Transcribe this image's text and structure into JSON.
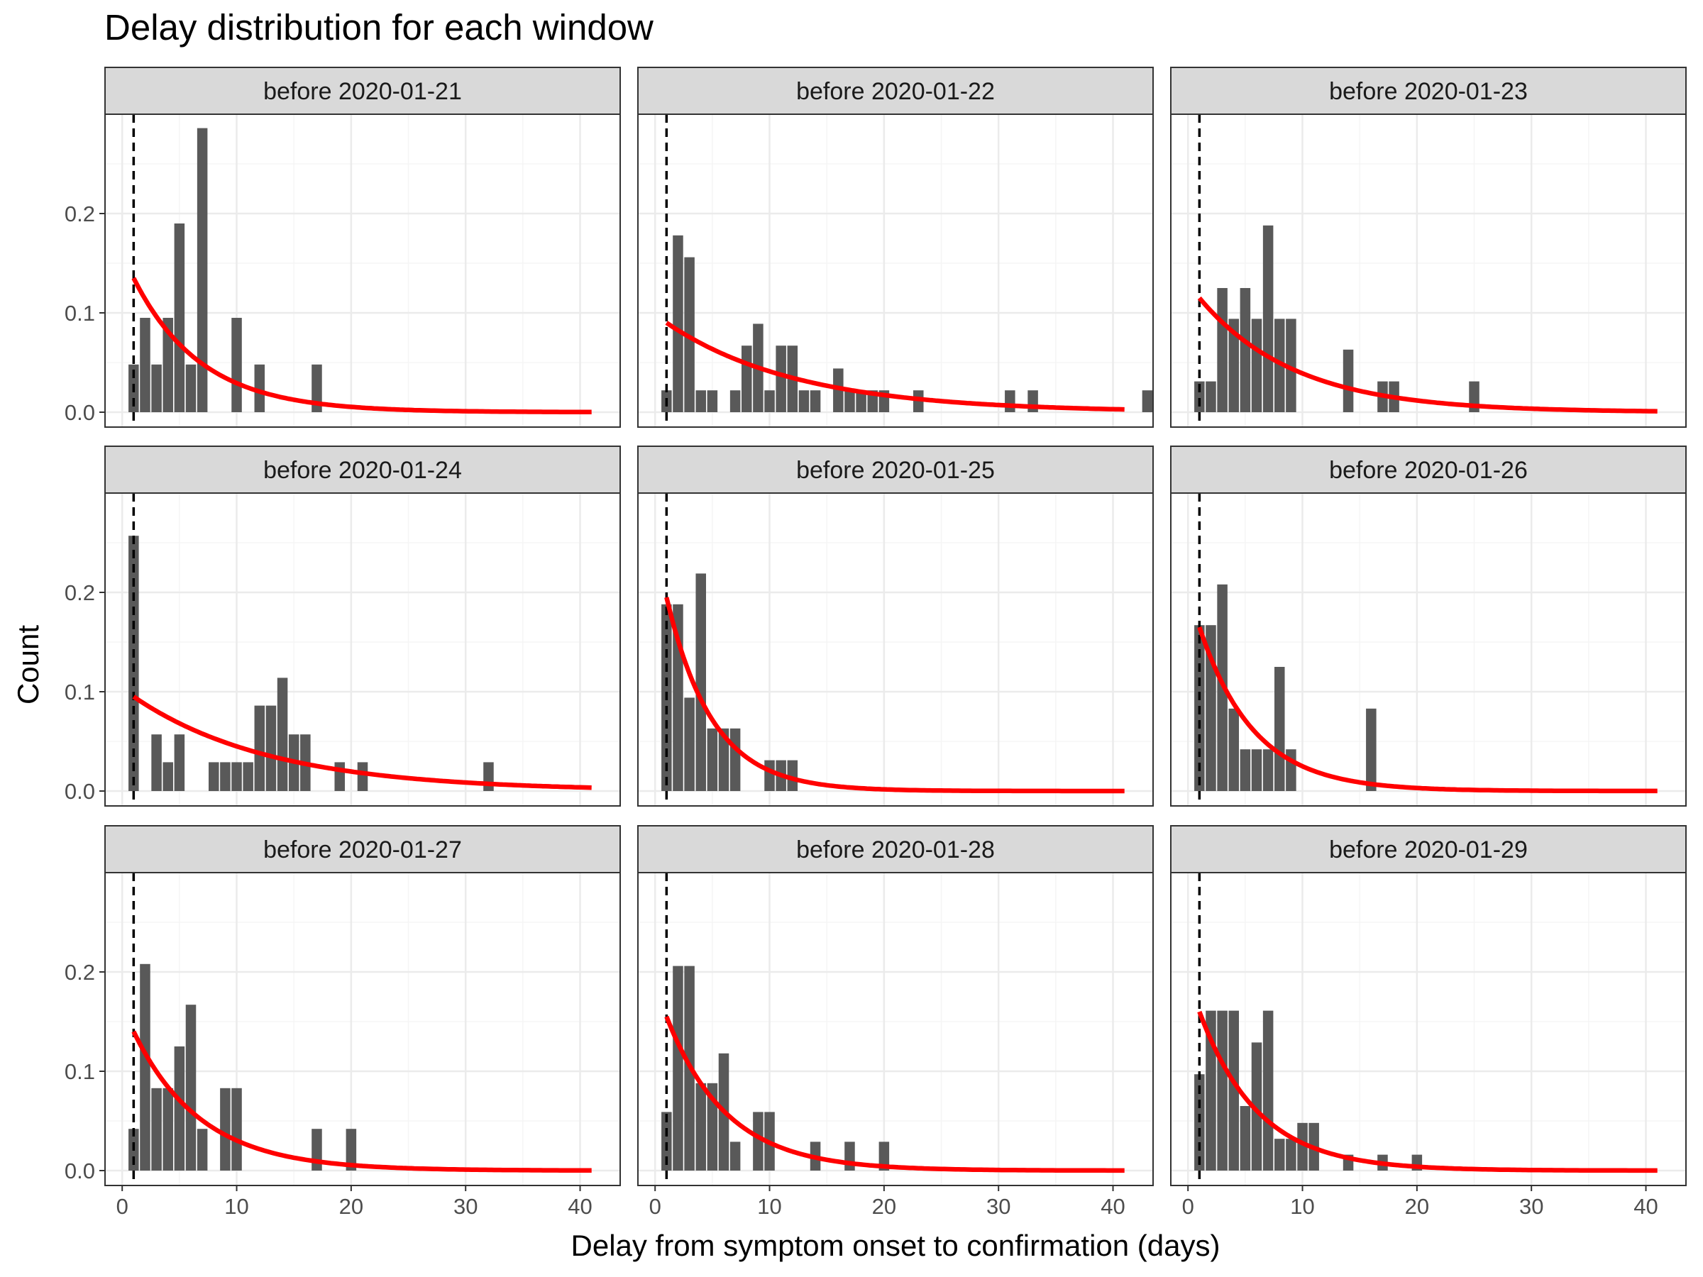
{
  "chart_data": {
    "type": "bar",
    "title": "Delay distribution for each window",
    "xlabel": "Delay from symptom onset to confirmation (days)",
    "ylabel": "Count",
    "xlim": [
      -1.5,
      43.5
    ],
    "ylim": [
      -0.015,
      0.3
    ],
    "x_ticks": [
      0,
      10,
      20,
      30,
      40
    ],
    "y_ticks": [
      0.0,
      0.1,
      0.2
    ],
    "x_tick_labels": [
      "0",
      "10",
      "20",
      "30",
      "40"
    ],
    "y_tick_labels": [
      "0.0",
      "0.1",
      "0.2"
    ],
    "grid": true,
    "facet_layout": {
      "rows": 3,
      "cols": 3
    },
    "reference_line_x": 1,
    "curve_range": [
      1,
      41
    ],
    "colors": {
      "bar": "#595959",
      "curve": "#ff0000",
      "vline": "#000000",
      "strip_bg": "#d9d9d9",
      "grid_major": "#ebebeb",
      "grid_minor": "#f5f5f5",
      "panel_border": "#333333"
    },
    "panels": [
      {
        "label": "before 2020-01-21",
        "bars": [
          [
            1,
            0.048
          ],
          [
            2,
            0.095
          ],
          [
            3,
            0.048
          ],
          [
            4,
            0.095
          ],
          [
            5,
            0.19
          ],
          [
            6,
            0.048
          ],
          [
            7,
            0.286
          ],
          [
            10,
            0.095
          ],
          [
            12,
            0.048
          ],
          [
            17,
            0.048
          ]
        ],
        "curve": {
          "a": 0.135,
          "rate": 0.17
        }
      },
      {
        "label": "before 2020-01-22",
        "bars": [
          [
            1,
            0.022
          ],
          [
            2,
            0.178
          ],
          [
            3,
            0.156
          ],
          [
            4,
            0.022
          ],
          [
            5,
            0.022
          ],
          [
            7,
            0.022
          ],
          [
            8,
            0.067
          ],
          [
            9,
            0.089
          ],
          [
            10,
            0.022
          ],
          [
            11,
            0.067
          ],
          [
            12,
            0.067
          ],
          [
            13,
            0.022
          ],
          [
            14,
            0.022
          ],
          [
            16,
            0.044
          ],
          [
            17,
            0.022
          ],
          [
            18,
            0.022
          ],
          [
            19,
            0.022
          ],
          [
            20,
            0.022
          ],
          [
            23,
            0.022
          ],
          [
            31,
            0.022
          ],
          [
            33,
            0.022
          ],
          [
            43,
            0.022
          ]
        ],
        "curve": {
          "a": 0.09,
          "rate": 0.087
        }
      },
      {
        "label": "before 2020-01-23",
        "bars": [
          [
            1,
            0.031
          ],
          [
            2,
            0.031
          ],
          [
            3,
            0.125
          ],
          [
            4,
            0.094
          ],
          [
            5,
            0.125
          ],
          [
            6,
            0.094
          ],
          [
            7,
            0.188
          ],
          [
            8,
            0.094
          ],
          [
            9,
            0.094
          ],
          [
            14,
            0.063
          ],
          [
            17,
            0.031
          ],
          [
            18,
            0.031
          ],
          [
            25,
            0.031
          ]
        ],
        "curve": {
          "a": 0.115,
          "rate": 0.12
        }
      },
      {
        "label": "before 2020-01-24",
        "bars": [
          [
            1,
            0.257
          ],
          [
            3,
            0.057
          ],
          [
            4,
            0.029
          ],
          [
            5,
            0.057
          ],
          [
            8,
            0.029
          ],
          [
            9,
            0.029
          ],
          [
            10,
            0.029
          ],
          [
            11,
            0.029
          ],
          [
            12,
            0.086
          ],
          [
            13,
            0.086
          ],
          [
            14,
            0.114
          ],
          [
            15,
            0.057
          ],
          [
            16,
            0.057
          ],
          [
            19,
            0.029
          ],
          [
            21,
            0.029
          ],
          [
            32,
            0.029
          ]
        ],
        "curve": {
          "a": 0.095,
          "rate": 0.083
        }
      },
      {
        "label": "before 2020-01-25",
        "bars": [
          [
            1,
            0.188
          ],
          [
            2,
            0.188
          ],
          [
            3,
            0.094
          ],
          [
            4,
            0.219
          ],
          [
            5,
            0.063
          ],
          [
            6,
            0.063
          ],
          [
            7,
            0.063
          ],
          [
            10,
            0.031
          ],
          [
            11,
            0.031
          ],
          [
            12,
            0.031
          ]
        ],
        "curve": {
          "a": 0.195,
          "rate": 0.25
        }
      },
      {
        "label": "before 2020-01-26",
        "bars": [
          [
            1,
            0.167
          ],
          [
            2,
            0.167
          ],
          [
            3,
            0.208
          ],
          [
            4,
            0.083
          ],
          [
            5,
            0.042
          ],
          [
            6,
            0.042
          ],
          [
            7,
            0.042
          ],
          [
            8,
            0.125
          ],
          [
            9,
            0.042
          ],
          [
            16,
            0.083
          ]
        ],
        "curve": {
          "a": 0.165,
          "rate": 0.21
        }
      },
      {
        "label": "before 2020-01-27",
        "bars": [
          [
            1,
            0.042
          ],
          [
            2,
            0.208
          ],
          [
            3,
            0.083
          ],
          [
            4,
            0.083
          ],
          [
            5,
            0.125
          ],
          [
            6,
            0.167
          ],
          [
            7,
            0.042
          ],
          [
            9,
            0.083
          ],
          [
            10,
            0.083
          ],
          [
            17,
            0.042
          ],
          [
            20,
            0.042
          ]
        ],
        "curve": {
          "a": 0.14,
          "rate": 0.17
        }
      },
      {
        "label": "before 2020-01-28",
        "bars": [
          [
            1,
            0.059
          ],
          [
            2,
            0.206
          ],
          [
            3,
            0.206
          ],
          [
            4,
            0.088
          ],
          [
            5,
            0.088
          ],
          [
            6,
            0.118
          ],
          [
            7,
            0.029
          ],
          [
            9,
            0.059
          ],
          [
            10,
            0.059
          ],
          [
            14,
            0.029
          ],
          [
            17,
            0.029
          ],
          [
            20,
            0.029
          ]
        ],
        "curve": {
          "a": 0.155,
          "rate": 0.19
        }
      },
      {
        "label": "before 2020-01-29",
        "bars": [
          [
            1,
            0.097
          ],
          [
            2,
            0.161
          ],
          [
            3,
            0.161
          ],
          [
            4,
            0.161
          ],
          [
            5,
            0.065
          ],
          [
            6,
            0.129
          ],
          [
            7,
            0.161
          ],
          [
            8,
            0.032
          ],
          [
            9,
            0.032
          ],
          [
            10,
            0.048
          ],
          [
            11,
            0.048
          ],
          [
            14,
            0.016
          ],
          [
            17,
            0.016
          ],
          [
            20,
            0.016
          ]
        ],
        "curve": {
          "a": 0.16,
          "rate": 0.195
        }
      }
    ]
  }
}
